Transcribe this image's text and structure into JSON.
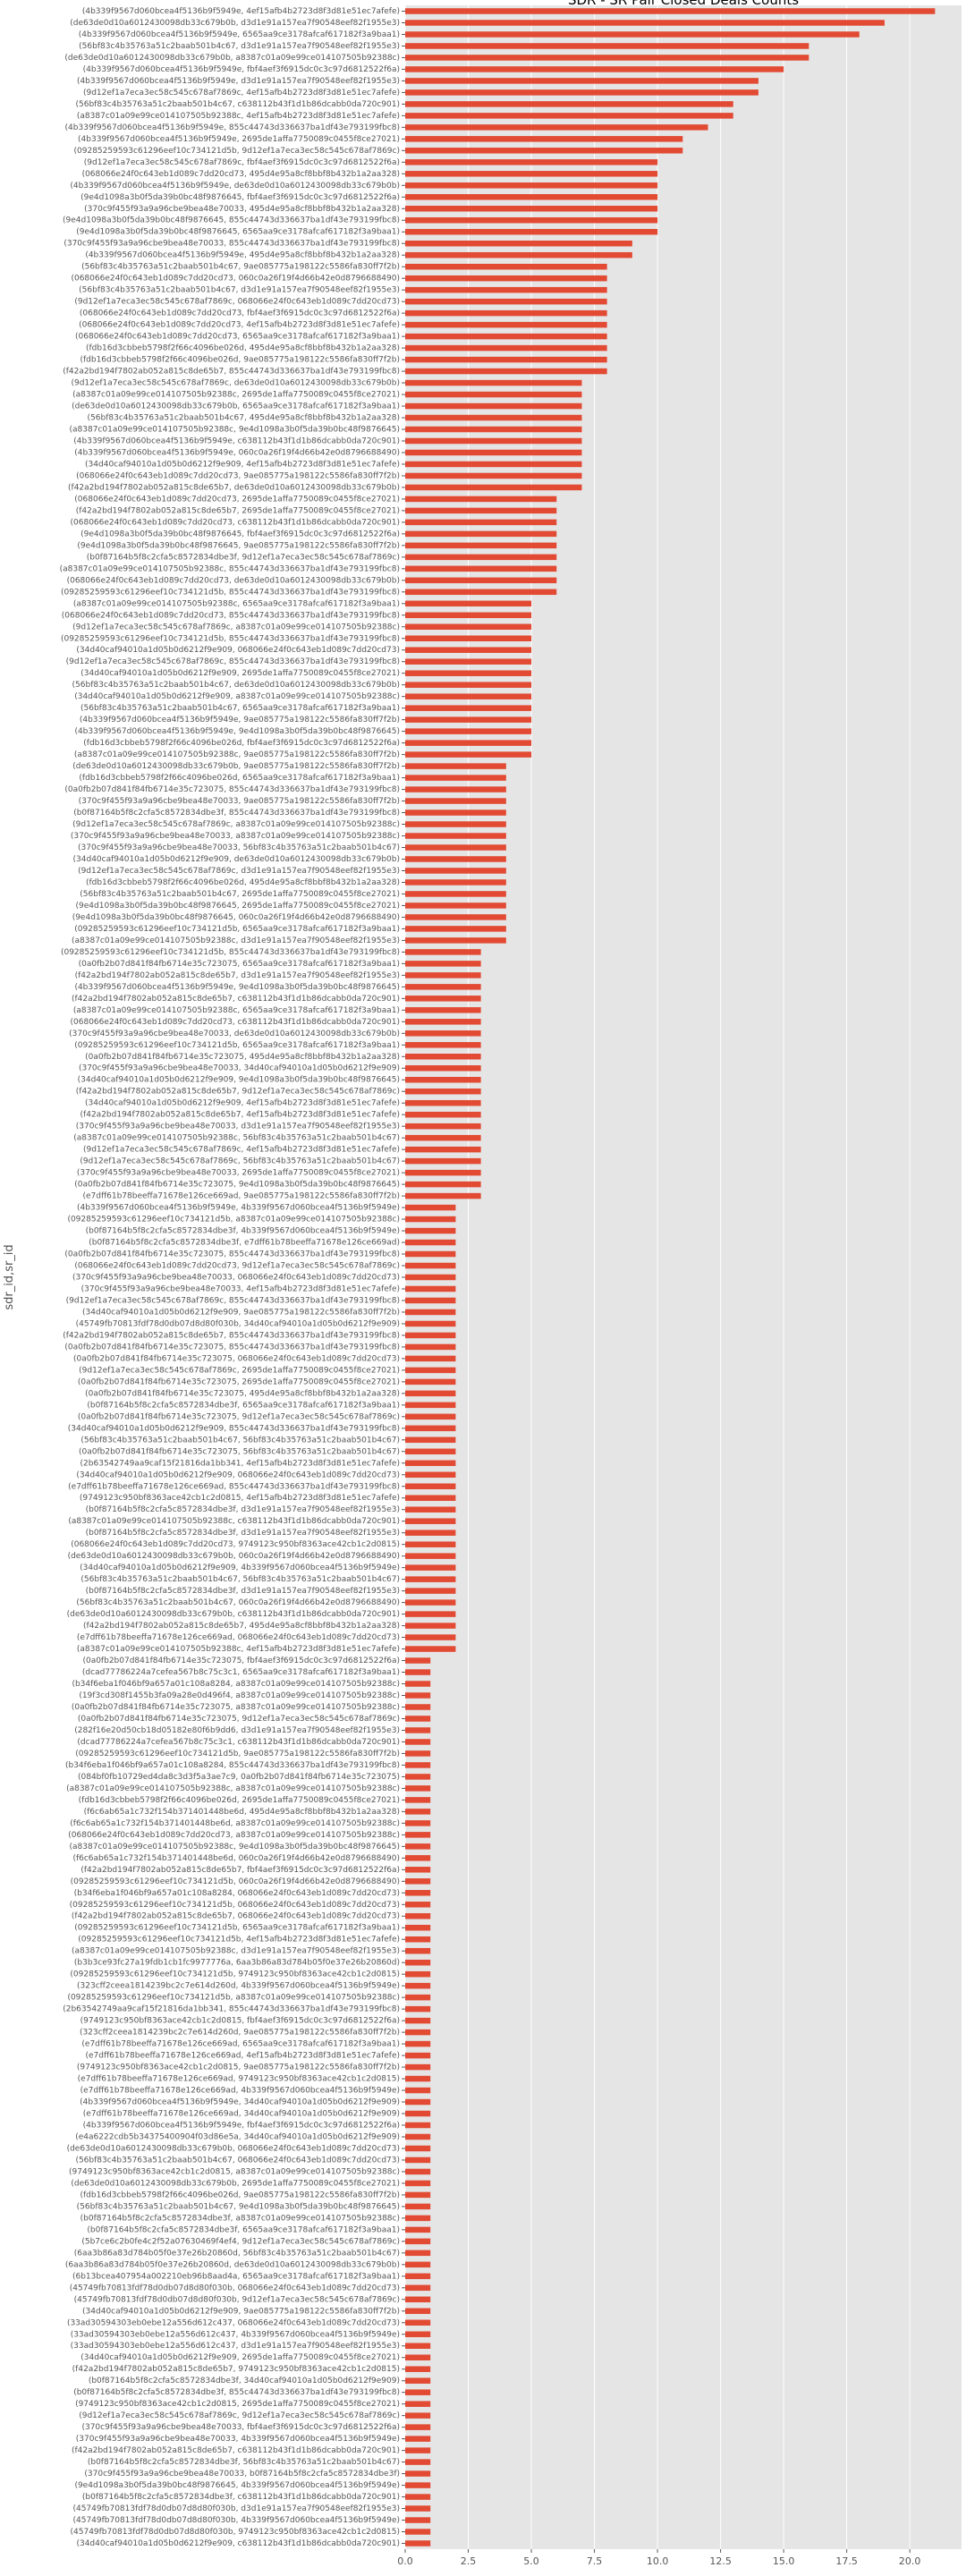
{
  "chart_data": {
    "type": "barh",
    "title": "SDR - SR Pair Closed Deals Counts",
    "ylabel": "sdr_id,sr_id",
    "color": "#e24a33",
    "grid": true,
    "xlim": [
      0,
      22.05
    ],
    "xticks": [
      {
        "value": 0,
        "label": "0.0"
      },
      2.5,
      {
        "value": 5,
        "label": "5.0"
      },
      7.5,
      {
        "value": 10,
        "label": "10.0"
      },
      12.5,
      {
        "value": 15,
        "label": "15.0"
      },
      17.5,
      {
        "value": 20,
        "label": "20.0"
      }
    ],
    "categories": [
      "(4b339f9567d060bcea4f5136b9f5949e, 4ef15afb4b2723d8f3d81e51ec7afefe)",
      "(de63de0d10a6012430098db33c679b0b, d3d1e91a157ea7f90548eef82f1955e3)",
      "(4b339f9567d060bcea4f5136b9f5949e, 6565aa9ce3178afcaf617182f3a9baa1)",
      "(56bf83c4b35763a51c2baab501b4c67, d3d1e91a157ea7f90548eef82f1955e3)",
      "(de63de0d10a6012430098db33c679b0b, a8387c01a09e99ce014107505b92388c)",
      "(4b339f9567d060bcea4f5136b9f5949e, fbf4aef3f6915dc0c3c97d6812522f6a)",
      "(4b339f9567d060bcea4f5136b9f5949e, d3d1e91a157ea7f90548eef82f1955e3)",
      "(9d12ef1a7eca3ec58c545c678af7869c, 4ef15afb4b2723d8f3d81e51ec7afefe)",
      "(56bf83c4b35763a51c2baab501b4c67, c638112b43f1d1b86dcabb0da720c901)",
      "(a8387c01a09e99ce014107505b92388c, 4ef15afb4b2723d8f3d81e51ec7afefe)",
      "(4b339f9567d060bcea4f5136b9f5949e, 855c44743d336637ba1df43e793199fbc8)",
      "(4b339f9567d060bcea4f5136b9f5949e, 2695de1affa7750089c0455f8ce27021)",
      "(09285259593c61296eef10c734121d5b, 9d12ef1a7eca3ec58c545c678af7869c)",
      "(9d12ef1a7eca3ec58c545c678af7869c, fbf4aef3f6915dc0c3c97d6812522f6a)",
      "(068066e24f0c643eb1d089c7dd20cd73, 495d4e95a8cf8bbf8b432b1a2aa328)",
      "(4b339f9567d060bcea4f5136b9f5949e, de63de0d10a6012430098db33c679b0b)",
      "(9e4d1098a3b0f5da39b0bc48f9876645, fbf4aef3f6915dc0c3c97d6812522f6a)",
      "(370c9f455f93a9a96cbe9bea48e70033, 495d4e95a8cf8bbf8b432b1a2aa328)",
      "(9e4d1098a3b0f5da39b0bc48f9876645, 855c44743d336637ba1df43e793199fbc8)",
      "(9e4d1098a3b0f5da39b0bc48f9876645, 6565aa9ce3178afcaf617182f3a9baa1)",
      "(370c9f455f93a9a96cbe9bea48e70033, 855c44743d336637ba1df43e793199fbc8)",
      "(4b339f9567d060bcea4f5136b9f5949e, 495d4e95a8cf8bbf8b432b1a2aa328)",
      "(56bf83c4b35763a51c2baab501b4c67, 9ae085775a198122c5586fa830ff7f2b)",
      "(068066e24f0c643eb1d089c7dd20cd73, 060c0a26f19f4d66b42e0d8796688490)",
      "(56bf83c4b35763a51c2baab501b4c67, d3d1e91a157ea7f90548eef82f1955e3)",
      "(9d12ef1a7eca3ec58c545c678af7869c, 068066e24f0c643eb1d089c7dd20cd73)",
      "(068066e24f0c643eb1d089c7dd20cd73, fbf4aef3f6915dc0c3c97d6812522f6a)",
      "(068066e24f0c643eb1d089c7dd20cd73, 4ef15afb4b2723d8f3d81e51ec7afefe)",
      "(068066e24f0c643eb1d089c7dd20cd73, 6565aa9ce3178afcaf617182f3a9baa1)",
      "(fdb16d3cbbeb5798f2f66c4096be026d, 495d4e95a8cf8bbf8b432b1a2aa328)",
      "(fdb16d3cbbeb5798f2f66c4096be026d, 9ae085775a198122c5586fa830ff7f2b)",
      "(f42a2bd194f7802ab052a815c8de65b7, 855c44743d336637ba1df43e793199fbc8)",
      "(9d12ef1a7eca3ec58c545c678af7869c, de63de0d10a6012430098db33c679b0b)",
      "(a8387c01a09e99ce014107505b92388c, 2695de1affa7750089c0455f8ce27021)",
      "(de63de0d10a6012430098db33c679b0b, 6565aa9ce3178afcaf617182f3a9baa1)",
      "(56bf83c4b35763a51c2baab501b4c67, 495d4e95a8cf8bbf8b432b1a2aa328)",
      "(a8387c01a09e99ce014107505b92388c, 9e4d1098a3b0f5da39b0bc48f9876645)",
      "(4b339f9567d060bcea4f5136b9f5949e, c638112b43f1d1b86dcabb0da720c901)",
      "(4b339f9567d060bcea4f5136b9f5949e, 060c0a26f19f4d66b42e0d8796688490)",
      "(34d40caf94010a1d05b0d6212f9e909, 4ef15afb4b2723d8f3d81e51ec7afefe)",
      "(068066e24f0c643eb1d089c7dd20cd73, 9ae085775a198122c5586fa830ff7f2b)",
      "(f42a2bd194f7802ab052a815c8de65b7, de63de0d10a6012430098db33c679b0b)",
      "(068066e24f0c643eb1d089c7dd20cd73, 2695de1affa7750089c0455f8ce27021)",
      "(f42a2bd194f7802ab052a815c8de65b7, 2695de1affa7750089c0455f8ce27021)",
      "(068066e24f0c643eb1d089c7dd20cd73, c638112b43f1d1b86dcabb0da720c901)",
      "(9e4d1098a3b0f5da39b0bc48f9876645, fbf4aef3f6915dc0c3c97d6812522f6a)",
      "(9e4d1098a3b0f5da39b0bc48f9876645, 9ae085775a198122c5586fa830ff7f2b)",
      "(b0f87164b5f8c2cfa5c8572834dbe3f, 9d12ef1a7eca3ec58c545c678af7869c)",
      "(a8387c01a09e99ce014107505b92388c, 855c44743d336637ba1df43e793199fbc8)",
      "(068066e24f0c643eb1d089c7dd20cd73, de63de0d10a6012430098db33c679b0b)",
      "(09285259593c61296eef10c734121d5b, 855c44743d336637ba1df43e793199fbc8)",
      "(a8387c01a09e99ce014107505b92388c, 6565aa9ce3178afcaf617182f3a9baa1)",
      "(068066e24f0c643eb1d089c7dd20cd73, 855c44743d336637ba1df43e793199fbc8)",
      "(9d12ef1a7eca3ec58c545c678af7869c, a8387c01a09e99ce014107505b92388c)",
      "(09285259593c61296eef10c734121d5b, 855c44743d336637ba1df43e793199fbc8)",
      "(34d40caf94010a1d05b0d6212f9e909, 068066e24f0c643eb1d089c7dd20cd73)",
      "(9d12ef1a7eca3ec58c545c678af7869c, 855c44743d336637ba1df43e793199fbc8)",
      "(34d40caf94010a1d05b0d6212f9e909, 2695de1affa7750089c0455f8ce27021)",
      "(56bf83c4b35763a51c2baab501b4c67, de63de0d10a6012430098db33c679b0b)",
      "(34d40caf94010a1d05b0d6212f9e909, a8387c01a09e99ce014107505b92388c)",
      "(56bf83c4b35763a51c2baab501b4c67, 6565aa9ce3178afcaf617182f3a9baa1)",
      "(4b339f9567d060bcea4f5136b9f5949e, 9ae085775a198122c5586fa830ff7f2b)",
      "(4b339f9567d060bcea4f5136b9f5949e, 9e4d1098a3b0f5da39b0bc48f9876645)",
      "(fdb16d3cbbeb5798f2f66c4096be026d, fbf4aef3f6915dc0c3c97d6812522f6a)",
      "(a8387c01a09e99ce014107505b92388c, 9ae085775a198122c5586fa830ff7f2b)",
      "(de63de0d10a6012430098db33c679b0b, 9ae085775a198122c5586fa830ff7f2b)",
      "(fdb16d3cbbeb5798f2f66c4096be026d, 6565aa9ce3178afcaf617182f3a9baa1)",
      "(0a0fb2b07d841f84fb6714e35c723075, 855c44743d336637ba1df43e793199fbc8)",
      "(370c9f455f93a9a96cbe9bea48e70033, 9ae085775a198122c5586fa830ff7f2b)",
      "(b0f87164b5f8c2cfa5c8572834dbe3f, 855c44743d336637ba1df43e793199fbc8)",
      "(9d12ef1a7eca3ec58c545c678af7869c, a8387c01a09e99ce014107505b92388c)",
      "(370c9f455f93a9a96cbe9bea48e70033, a8387c01a09e99ce014107505b92388c)",
      "(370c9f455f93a9a96cbe9bea48e70033, 56bf83c4b35763a51c2baab501b4c67)",
      "(34d40caf94010a1d05b0d6212f9e909, de63de0d10a6012430098db33c679b0b)",
      "(9d12ef1a7eca3ec58c545c678af7869c, d3d1e91a157ea7f90548eef82f1955e3)",
      "(fdb16d3cbbeb5798f2f66c4096be026d, 495d4e95a8cf8bbf8b432b1a2aa328)",
      "(56bf83c4b35763a51c2baab501b4c67, 2695de1affa7750089c0455f8ce27021)",
      "(9e4d1098a3b0f5da39b0bc48f9876645, 2695de1affa7750089c0455f8ce27021)",
      "(9e4d1098a3b0f5da39b0bc48f9876645, 060c0a26f19f4d66b42e0d8796688490)",
      "(09285259593c61296eef10c734121d5b, 6565aa9ce3178afcaf617182f3a9baa1)",
      "(a8387c01a09e99ce014107505b92388c, d3d1e91a157ea7f90548eef82f1955e3)",
      "(09285259593c61296eef10c734121d5b, 855c44743d336637ba1df43e793199fbc8)",
      "(0a0fb2b07d841f84fb6714e35c723075, 6565aa9ce3178afcaf617182f3a9baa1)",
      "(f42a2bd194f7802ab052a815c8de65b7, d3d1e91a157ea7f90548eef82f1955e3)",
      "(4b339f9567d060bcea4f5136b9f5949e, 9e4d1098a3b0f5da39b0bc48f9876645)",
      "(f42a2bd194f7802ab052a815c8de65b7, c638112b43f1d1b86dcabb0da720c901)",
      "(a8387c01a09e99ce014107505b92388c, 6565aa9ce3178afcaf617182f3a9baa1)",
      "(068066e24f0c643eb1d089c7dd20cd73, c638112b43f1d1b86dcabb0da720c901)",
      "(370c9f455f93a9a96cbe9bea48e70033, de63de0d10a6012430098db33c679b0b)",
      "(09285259593c61296eef10c734121d5b, 6565aa9ce3178afcaf617182f3a9baa1)",
      "(0a0fb2b07d841f84fb6714e35c723075, 495d4e95a8cf8bbf8b432b1a2aa328)",
      "(370c9f455f93a9a96cbe9bea48e70033, 34d40caf94010a1d05b0d6212f9e909)",
      "(34d40caf94010a1d05b0d6212f9e909, 9e4d1098a3b0f5da39b0bc48f9876645)",
      "(f42a2bd194f7802ab052a815c8de65b7, 9d12ef1a7eca3ec58c545c678af7869c)",
      "(34d40caf94010a1d05b0d6212f9e909, 4ef15afb4b2723d8f3d81e51ec7afefe)",
      "(f42a2bd194f7802ab052a815c8de65b7, 4ef15afb4b2723d8f3d81e51ec7afefe)",
      "(370c9f455f93a9a96cbe9bea48e70033, d3d1e91a157ea7f90548eef82f1955e3)",
      "(a8387c01a09e99ce014107505b92388c, 56bf83c4b35763a51c2baab501b4c67)",
      "(9d12ef1a7eca3ec58c545c678af7869c, 4ef15afb4b2723d8f3d81e51ec7afefe)",
      "(9d12ef1a7eca3ec58c545c678af7869c, 56bf83c4b35763a51c2baab501b4c67)",
      "(370c9f455f93a9a96cbe9bea48e70033, 2695de1affa7750089c0455f8ce27021)",
      "(0a0fb2b07d841f84fb6714e35c723075, 9e4d1098a3b0f5da39b0bc48f9876645)",
      "(e7dff61b78beeffa71678e126ce669ad, 9ae085775a198122c5586fa830ff7f2b)",
      "(4b339f9567d060bcea4f5136b9f5949e, 4b339f9567d060bcea4f5136b9f5949e)",
      "(09285259593c61296eef10c734121d5b, a8387c01a09e99ce014107505b92388c)",
      "(b0f87164b5f8c2cfa5c8572834dbe3f, 4b339f9567d060bcea4f5136b9f5949e)",
      "(b0f87164b5f8c2cfa5c8572834dbe3f, e7dff61b78beeffa71678e126ce669ad)",
      "(0a0fb2b07d841f84fb6714e35c723075, 855c44743d336637ba1df43e793199fbc8)",
      "(068066e24f0c643eb1d089c7dd20cd73, 9d12ef1a7eca3ec58c545c678af7869c)",
      "(370c9f455f93a9a96cbe9bea48e70033, 068066e24f0c643eb1d089c7dd20cd73)",
      "(370c9f455f93a9a96cbe9bea48e70033, 4ef15afb4b2723d8f3d81e51ec7afefe)",
      "(9d12ef1a7eca3ec58c545c678af7869c, 855c44743d336637ba1df43e793199fbc8)",
      "(34d40caf94010a1d05b0d6212f9e909, 9ae085775a198122c5586fa830ff7f2b)",
      "(45749fb70813fdf78d0db07d8d80f030b, 34d40caf94010a1d05b0d6212f9e909)",
      "(f42a2bd194f7802ab052a815c8de65b7, 855c44743d336637ba1df43e793199fbc8)",
      "(0a0fb2b07d841f84fb6714e35c723075, 855c44743d336637ba1df43e793199fbc8)",
      "(0a0fb2b07d841f84fb6714e35c723075, 068066e24f0c643eb1d089c7dd20cd73)",
      "(9d12ef1a7eca3ec58c545c678af7869c, 2695de1affa7750089c0455f8ce27021)",
      "(0a0fb2b07d841f84fb6714e35c723075, 2695de1affa7750089c0455f8ce27021)",
      "(0a0fb2b07d841f84fb6714e35c723075, 495d4e95a8cf8bbf8b432b1a2aa328)",
      "(b0f87164b5f8c2cfa5c8572834dbe3f, 6565aa9ce3178afcaf617182f3a9baa1)",
      "(0a0fb2b07d841f84fb6714e35c723075, 9d12ef1a7eca3ec58c545c678af7869c)",
      "(34d40caf94010a1d05b0d6212f9e909, 855c44743d336637ba1df43e793199fbc8)",
      "(56bf83c4b35763a51c2baab501b4c67, 56bf83c4b35763a51c2baab501b4c67)",
      "(0a0fb2b07d841f84fb6714e35c723075, 56bf83c4b35763a51c2baab501b4c67)",
      "(2b63542749aa9caf15f21816da1bb341, 4ef15afb4b2723d8f3d81e51ec7afefe)",
      "(34d40caf94010a1d05b0d6212f9e909, 068066e24f0c643eb1d089c7dd20cd73)",
      "(e7dff61b78beeffa71678e126ce669ad, 855c44743d336637ba1df43e793199fbc8)",
      "(9749123c950bf8363ace42cb1c2d0815, 4ef15afb4b2723d8f3d81e51ec7afefe)",
      "(b0f87164b5f8c2cfa5c8572834dbe3f, d3d1e91a157ea7f90548eef82f1955e3)",
      "(a8387c01a09e99ce014107505b92388c, c638112b43f1d1b86dcabb0da720c901)",
      "(b0f87164b5f8c2cfa5c8572834dbe3f, d3d1e91a157ea7f90548eef82f1955e3)",
      "(068066e24f0c643eb1d089c7dd20cd73, 9749123c950bf8363ace42cb1c2d0815)",
      "(de63de0d10a6012430098db33c679b0b, 060c0a26f19f4d66b42e0d8796688490)",
      "(34d40caf94010a1d05b0d6212f9e909, 4b339f9567d060bcea4f5136b9f5949e)",
      "(56bf83c4b35763a51c2baab501b4c67, 56bf83c4b35763a51c2baab501b4c67)",
      "(b0f87164b5f8c2cfa5c8572834dbe3f, d3d1e91a157ea7f90548eef82f1955e3)",
      "(56bf83c4b35763a51c2baab501b4c67, 060c0a26f19f4d66b42e0d8796688490)",
      "(de63de0d10a6012430098db33c679b0b, c638112b43f1d1b86dcabb0da720c901)",
      "(f42a2bd194f7802ab052a815c8de65b7, 495d4e95a8cf8bbf8b432b1a2aa328)",
      "(e7dff61b78beeffa71678e126ce669ad, 068066e24f0c643eb1d089c7dd20cd73)",
      "(a8387c01a09e99ce014107505b92388c, 4ef15afb4b2723d8f3d81e51ec7afefe)",
      "(0a0fb2b07d841f84fb6714e35c723075, fbf4aef3f6915dc0c3c97d6812522f6a)",
      "(dcad77786224a7cefea567b8c75c3c1, 6565aa9ce3178afcaf617182f3a9baa1)",
      "(b34f6eba1f046bf9a657a01c108a8284, a8387c01a09e99ce014107505b92388c)",
      "(19f3cd308f1455b3fa09a28e0d496f4, a8387c01a09e99ce014107505b92388c)",
      "(0a0fb2b07d841f84fb6714e35c723075, a8387c01a09e99ce014107505b92388c)",
      "(0a0fb2b07d841f84fb6714e35c723075, 9d12ef1a7eca3ec58c545c678af7869c)",
      "(282f16e20d50cb18d05182e80f6b9dd6, d3d1e91a157ea7f90548eef82f1955e3)",
      "(dcad77786224a7cefea567b8c75c3c1, c638112b43f1d1b86dcabb0da720c901)",
      "(09285259593c61296eef10c734121d5b, 9ae085775a198122c5586fa830ff7f2b)",
      "(b34f6eba1f046bf9a657a01c108a8284, 855c44743d336637ba1df43e793199fbc8)",
      "(084bf0fb10729ed4da8c3d3f5a3ae7c9, 0a0fb2b07d841f84fb6714e35c723075)",
      "(a8387c01a09e99ce014107505b92388c, a8387c01a09e99ce014107505b92388c)",
      "(fdb16d3cbbeb5798f2f66c4096be026d, 2695de1affa7750089c0455f8ce27021)",
      "(f6c6ab65a1c732f154b371401448be6d, 495d4e95a8cf8bbf8b432b1a2aa328)",
      "(f6c6ab65a1c732f154b371401448be6d, a8387c01a09e99ce014107505b92388c)",
      "(068066e24f0c643eb1d089c7dd20cd73, a8387c01a09e99ce014107505b92388c)",
      "(a8387c01a09e99ce014107505b92388c, 9e4d1098a3b0f5da39b0bc48f9876645)",
      "(f6c6ab65a1c732f154b371401448be6d, 060c0a26f19f4d66b42e0d8796688490)",
      "(f42a2bd194f7802ab052a815c8de65b7, fbf4aef3f6915dc0c3c97d6812522f6a)",
      "(09285259593c61296eef10c734121d5b, 060c0a26f19f4d66b42e0d8796688490)",
      "(b34f6eba1f046bf9a657a01c108a8284, 068066e24f0c643eb1d089c7dd20cd73)",
      "(09285259593c61296eef10c734121d5b, 068066e24f0c643eb1d089c7dd20cd73)",
      "(f42a2bd194f7802ab052a815c8de65b7, 068066e24f0c643eb1d089c7dd20cd73)",
      "(09285259593c61296eef10c734121d5b, 6565aa9ce3178afcaf617182f3a9baa1)",
      "(09285259593c61296eef10c734121d5b, 4ef15afb4b2723d8f3d81e51ec7afefe)",
      "(a8387c01a09e99ce014107505b92388c, d3d1e91a157ea7f90548eef82f1955e3)",
      "(b3b3ce93fc27a19fdb1cb1fc9977776a, 6aa3b86a83d784b05f0e37e26b20860d)",
      "(09285259593c61296eef10c734121d5b, 9749123c950bf8363ace42cb1c2d0815)",
      "(323cff2ceea1814239bc2c7e614d260d, 4b339f9567d060bcea4f5136b9f5949e)",
      "(09285259593c61296eef10c734121d5b, a8387c01a09e99ce014107505b92388c)",
      "(2b63542749aa9caf15f21816da1bb341, 855c44743d336637ba1df43e793199fbc8)",
      "(9749123c950bf8363ace42cb1c2d0815, fbf4aef3f6915dc0c3c97d6812522f6a)",
      "(323cff2ceea1814239bc2c7e614d260d, 9ae085775a198122c5586fa830ff7f2b)",
      "(e7dff61b78beeffa71678e126ce669ad, 6565aa9ce3178afcaf617182f3a9baa1)",
      "(e7dff61b78beeffa71678e126ce669ad, 4ef15afb4b2723d8f3d81e51ec7afefe)",
      "(9749123c950bf8363ace42cb1c2d0815, 9ae085775a198122c5586fa830ff7f2b)",
      "(e7dff61b78beeffa71678e126ce669ad, 9749123c950bf8363ace42cb1c2d0815)",
      "(e7dff61b78beeffa71678e126ce669ad, 4b339f9567d060bcea4f5136b9f5949e)",
      "(4b339f9567d060bcea4f5136b9f5949e, 34d40caf94010a1d05b0d6212f9e909)",
      "(e7dff61b78beeffa71678e126ce669ad, 34d40caf94010a1d05b0d6212f9e909)",
      "(4b339f9567d060bcea4f5136b9f5949e, fbf4aef3f6915dc0c3c97d6812522f6a)",
      "(e4a6222cdb5b34375400904f03d86e5a, 34d40caf94010a1d05b0d6212f9e909)",
      "(de63de0d10a6012430098db33c679b0b, 068066e24f0c643eb1d089c7dd20cd73)",
      "(56bf83c4b35763a51c2baab501b4c67, 068066e24f0c643eb1d089c7dd20cd73)",
      "(9749123c950bf8363ace42cb1c2d0815, a8387c01a09e99ce014107505b92388c)",
      "(de63de0d10a6012430098db33c679b0b, 2695de1affa7750089c0455f8ce27021)",
      "(fdb16d3cbbeb5798f2f66c4096be026d, 9ae085775a198122c5586fa830ff7f2b)",
      "(56bf83c4b35763a51c2baab501b4c67, 9e4d1098a3b0f5da39b0bc48f9876645)",
      "(b0f87164b5f8c2cfa5c8572834dbe3f, a8387c01a09e99ce014107505b92388c)",
      "(b0f87164b5f8c2cfa5c8572834dbe3f, 6565aa9ce3178afcaf617182f3a9baa1)",
      "(5b7ce6c2b0fe4c2f52a07630469f4ef4, 9d12ef1a7eca3ec58c545c678af7869c)",
      "(6aa3b86a83d784b05f0e37e26b20860d, 56bf83c4b35763a51c2baab501b4c67)",
      "(6aa3b86a83d784b05f0e37e26b20860d, de63de0d10a6012430098db33c679b0b)",
      "(6b13bcea407954a002210eb96b8aad4a, 6565aa9ce3178afcaf617182f3a9baa1)",
      "(45749fb70813fdf78d0db07d8d80f030b, 068066e24f0c643eb1d089c7dd20cd73)",
      "(45749fb70813fdf78d0db07d8d80f030b, 9d12ef1a7eca3ec58c545c678af7869c)",
      "(34d40caf94010a1d05b0d6212f9e909, 9ae085775a198122c5586fa830ff7f2b)",
      "(33ad30594303eb0ebe12a556d612c437, 068066e24f0c643eb1d089c7dd20cd73)",
      "(33ad30594303eb0ebe12a556d612c437, 4b339f9567d060bcea4f5136b9f5949e)",
      "(33ad30594303eb0ebe12a556d612c437, d3d1e91a157ea7f90548eef82f1955e3)",
      "(34d40caf94010a1d05b0d6212f9e909, 2695de1affa7750089c0455f8ce27021)",
      "(f42a2bd194f7802ab052a815c8de65b7, 9749123c950bf8363ace42cb1c2d0815)",
      "(b0f87164b5f8c2cfa5c8572834dbe3f, 34d40caf94010a1d05b0d6212f9e909)",
      "(b0f87164b5f8c2cfa5c8572834dbe3f, 855c44743d336637ba1df43e793199fbc8)",
      "(9749123c950bf8363ace42cb1c2d0815, 2695de1affa7750089c0455f8ce27021)",
      "(9d12ef1a7eca3ec58c545c678af7869c, 9d12ef1a7eca3ec58c545c678af7869c)",
      "(370c9f455f93a9a96cbe9bea48e70033, fbf4aef3f6915dc0c3c97d6812522f6a)",
      "(370c9f455f93a9a96cbe9bea48e70033, 4b339f9567d060bcea4f5136b9f5949e)",
      "(f42a2bd194f7802ab052a815c8de65b7, c638112b43f1d1b86dcabb0da720c901)",
      "(b0f87164b5f8c2cfa5c8572834dbe3f, 56bf83c4b35763a51c2baab501b4c67)",
      "(370c9f455f93a9a96cbe9bea48e70033, b0f87164b5f8c2cfa5c8572834dbe3f)",
      "(9e4d1098a3b0f5da39b0bc48f9876645, 4b339f9567d060bcea4f5136b9f5949e)",
      "(b0f87164b5f8c2cfa5c8572834dbe3f, c638112b43f1d1b86dcabb0da720c901)",
      "(45749fb70813fdf78d0db07d8d80f030b, d3d1e91a157ea7f90548eef82f1955e3)",
      "(45749fb70813fdf78d0db07d8d80f030b, 4b339f9567d060bcea4f5136b9f5949e)",
      "(45749fb70813fdf78d0db07d8d80f030b, 9749123c950bf8363ace42cb1c2d0815)",
      "(34d40caf94010a1d05b0d6212f9e909, c638112b43f1d1b86dcabb0da720c901)"
    ],
    "values": [
      21,
      19,
      18,
      16,
      16,
      15,
      14,
      14,
      13,
      13,
      12,
      11,
      11,
      10,
      10,
      10,
      10,
      10,
      10,
      10,
      9,
      9,
      8,
      8,
      8,
      8,
      8,
      8,
      8,
      8,
      8,
      8,
      7,
      7,
      7,
      7,
      7,
      7,
      7,
      7,
      7,
      7,
      6,
      6,
      6,
      6,
      6,
      6,
      6,
      6,
      6,
      5,
      5,
      5,
      5,
      5,
      5,
      5,
      5,
      5,
      5,
      5,
      5,
      5,
      5,
      4,
      4,
      4,
      4,
      4,
      4,
      4,
      4,
      4,
      4,
      4,
      4,
      4,
      4,
      4,
      4,
      3,
      3,
      3,
      3,
      3,
      3,
      3,
      3,
      3,
      3,
      3,
      3,
      3,
      3,
      3,
      3,
      3,
      3,
      3,
      3,
      3,
      3,
      2,
      2,
      2,
      2,
      2,
      2,
      2,
      2,
      2,
      2,
      2,
      2,
      2,
      2,
      2,
      2,
      2,
      2,
      2,
      2,
      2,
      2,
      2,
      2,
      2,
      2,
      2,
      2,
      2,
      2,
      2,
      2,
      2,
      2,
      2,
      2,
      2,
      2,
      2,
      1,
      1,
      1,
      1,
      1,
      1,
      1,
      1,
      1,
      1,
      1,
      1,
      1,
      1,
      1,
      1,
      1,
      1,
      1,
      1,
      1,
      1,
      1,
      1,
      1,
      1,
      1,
      1,
      1,
      1,
      1,
      1,
      1,
      1,
      1,
      1,
      1,
      1,
      1,
      1,
      1,
      1,
      1,
      1,
      1,
      1,
      1,
      1,
      1,
      1,
      1,
      1,
      1,
      1,
      1,
      1,
      1,
      1,
      1,
      1,
      1,
      1,
      1,
      1,
      1,
      1,
      1,
      1,
      1,
      1,
      1,
      1,
      1,
      1,
      1,
      1,
      1
    ]
  }
}
